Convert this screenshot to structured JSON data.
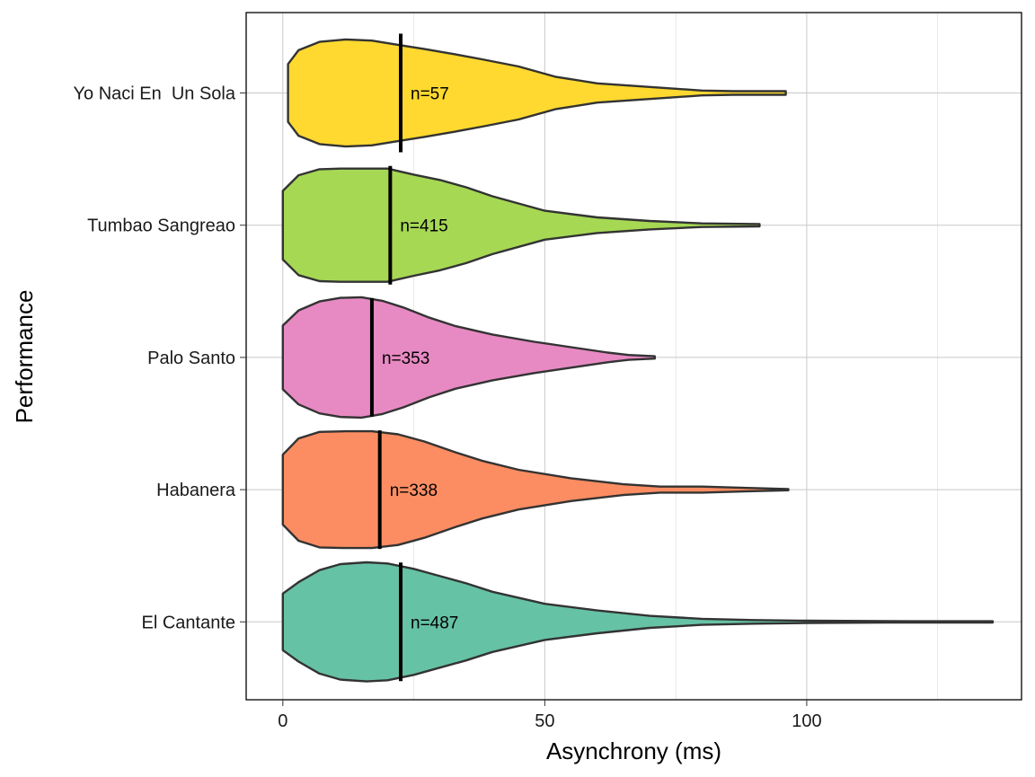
{
  "chart_data": {
    "type": "violin",
    "orientation": "horizontal",
    "title": "",
    "xlabel": "Asynchrony (ms)",
    "ylabel": "Performance",
    "xlim": [
      -7,
      141
    ],
    "x_ticks": [
      0,
      50,
      100
    ],
    "x_minor_ticks": [
      25,
      75,
      125
    ],
    "grid": true,
    "legend": "none",
    "categories": [
      "El Cantante",
      "Habanera",
      "Palo Santo",
      "Tumbao Sangreao",
      "Yo Naci En  Un Sola"
    ],
    "series": [
      {
        "category": "El Cantante",
        "color": "#66c2a5",
        "n_label": "n=487",
        "median": 22.5,
        "min": 0,
        "max": 135.5,
        "density": [
          [
            0,
            0.47
          ],
          [
            3,
            0.66
          ],
          [
            7,
            0.86
          ],
          [
            11,
            0.96
          ],
          [
            16,
            0.99
          ],
          [
            20,
            0.97
          ],
          [
            25,
            0.88
          ],
          [
            30,
            0.76
          ],
          [
            35,
            0.64
          ],
          [
            40,
            0.5
          ],
          [
            50,
            0.3
          ],
          [
            60,
            0.19
          ],
          [
            70,
            0.1
          ],
          [
            80,
            0.05
          ],
          [
            90,
            0.03
          ],
          [
            100,
            0.02
          ],
          [
            115,
            0.012
          ],
          [
            135.5,
            0.01
          ]
        ]
      },
      {
        "category": "Habanera",
        "color": "#fc8d62",
        "n_label": "n=338",
        "median": 18.5,
        "min": 0,
        "max": 96.5,
        "density": [
          [
            0,
            0.58
          ],
          [
            3,
            0.85
          ],
          [
            7,
            0.96
          ],
          [
            12,
            0.97
          ],
          [
            17,
            0.97
          ],
          [
            22,
            0.92
          ],
          [
            27,
            0.8
          ],
          [
            33,
            0.62
          ],
          [
            38,
            0.48
          ],
          [
            45,
            0.33
          ],
          [
            55,
            0.19
          ],
          [
            65,
            0.09
          ],
          [
            72,
            0.05
          ],
          [
            80,
            0.05
          ],
          [
            88,
            0.03
          ],
          [
            96.5,
            0.01
          ]
        ]
      },
      {
        "category": "Palo Santo",
        "color": "#e78ac3",
        "n_label": "n=353",
        "median": 17,
        "min": 0,
        "max": 71,
        "density": [
          [
            0,
            0.53
          ],
          [
            3,
            0.78
          ],
          [
            7,
            0.93
          ],
          [
            11,
            0.99
          ],
          [
            15,
            1.0
          ],
          [
            19,
            0.94
          ],
          [
            23,
            0.83
          ],
          [
            28,
            0.66
          ],
          [
            33,
            0.52
          ],
          [
            40,
            0.38
          ],
          [
            48,
            0.26
          ],
          [
            55,
            0.17
          ],
          [
            62,
            0.08
          ],
          [
            66,
            0.04
          ],
          [
            71,
            0.02
          ]
        ]
      },
      {
        "category": "Tumbao Sangreao",
        "color": "#a6d854",
        "n_label": "n=415",
        "median": 20.5,
        "min": 0,
        "max": 91,
        "density": [
          [
            0,
            0.57
          ],
          [
            3,
            0.83
          ],
          [
            7,
            0.93
          ],
          [
            11,
            0.94
          ],
          [
            16,
            0.94
          ],
          [
            20,
            0.94
          ],
          [
            25,
            0.84
          ],
          [
            30,
            0.75
          ],
          [
            35,
            0.63
          ],
          [
            40,
            0.48
          ],
          [
            50,
            0.24
          ],
          [
            60,
            0.13
          ],
          [
            70,
            0.07
          ],
          [
            80,
            0.03
          ],
          [
            91,
            0.02
          ]
        ]
      },
      {
        "category": "Yo Naci En  Un Sola",
        "color": "#ffd92f",
        "n_label": "n=57",
        "median": 22.5,
        "min": 1,
        "max": 96,
        "density": [
          [
            1,
            0.48
          ],
          [
            3,
            0.71
          ],
          [
            7,
            0.85
          ],
          [
            12,
            0.89
          ],
          [
            17,
            0.87
          ],
          [
            22,
            0.8
          ],
          [
            27,
            0.73
          ],
          [
            33,
            0.64
          ],
          [
            38,
            0.56
          ],
          [
            45,
            0.44
          ],
          [
            52,
            0.27
          ],
          [
            60,
            0.16
          ],
          [
            70,
            0.1
          ],
          [
            80,
            0.04
          ],
          [
            86,
            0.03
          ],
          [
            96,
            0.03
          ]
        ]
      }
    ]
  }
}
